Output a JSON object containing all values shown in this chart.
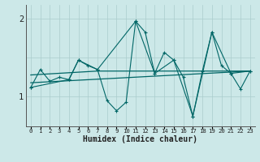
{
  "xlabel": "Humidex (Indice chaleur)",
  "bg_color": "#cce8e8",
  "line_color": "#006666",
  "grid_color": "#aacccc",
  "xlim": [
    -0.5,
    23.5
  ],
  "ylim": [
    0.62,
    2.18
  ],
  "yticks": [
    1,
    2
  ],
  "xticks": [
    0,
    1,
    2,
    3,
    4,
    5,
    6,
    7,
    8,
    9,
    10,
    11,
    12,
    13,
    14,
    15,
    16,
    17,
    18,
    19,
    20,
    21,
    22,
    23
  ],
  "line1": [
    [
      0,
      1.12
    ],
    [
      1,
      1.35
    ],
    [
      2,
      1.2
    ],
    [
      3,
      1.25
    ],
    [
      4,
      1.22
    ],
    [
      5,
      1.47
    ],
    [
      6,
      1.4
    ],
    [
      7,
      1.35
    ],
    [
      8,
      0.95
    ],
    [
      9,
      0.82
    ],
    [
      10,
      0.93
    ],
    [
      11,
      1.97
    ],
    [
      12,
      1.83
    ],
    [
      13,
      1.3
    ],
    [
      14,
      1.57
    ],
    [
      15,
      1.47
    ],
    [
      16,
      1.25
    ],
    [
      17,
      0.75
    ],
    [
      18,
      1.33
    ],
    [
      19,
      1.83
    ],
    [
      20,
      1.4
    ],
    [
      21,
      1.3
    ],
    [
      22,
      1.1
    ],
    [
      23,
      1.33
    ]
  ],
  "line2": [
    [
      0,
      1.12
    ],
    [
      4,
      1.22
    ],
    [
      5,
      1.47
    ],
    [
      7,
      1.35
    ],
    [
      11,
      1.97
    ],
    [
      13,
      1.3
    ],
    [
      15,
      1.47
    ],
    [
      17,
      0.75
    ],
    [
      19,
      1.83
    ],
    [
      21,
      1.3
    ],
    [
      23,
      1.33
    ]
  ],
  "trend_line": [
    [
      0,
      1.28
    ],
    [
      7,
      1.33
    ],
    [
      23,
      1.33
    ]
  ],
  "trend_line2": [
    [
      0,
      1.18
    ],
    [
      23,
      1.33
    ]
  ]
}
